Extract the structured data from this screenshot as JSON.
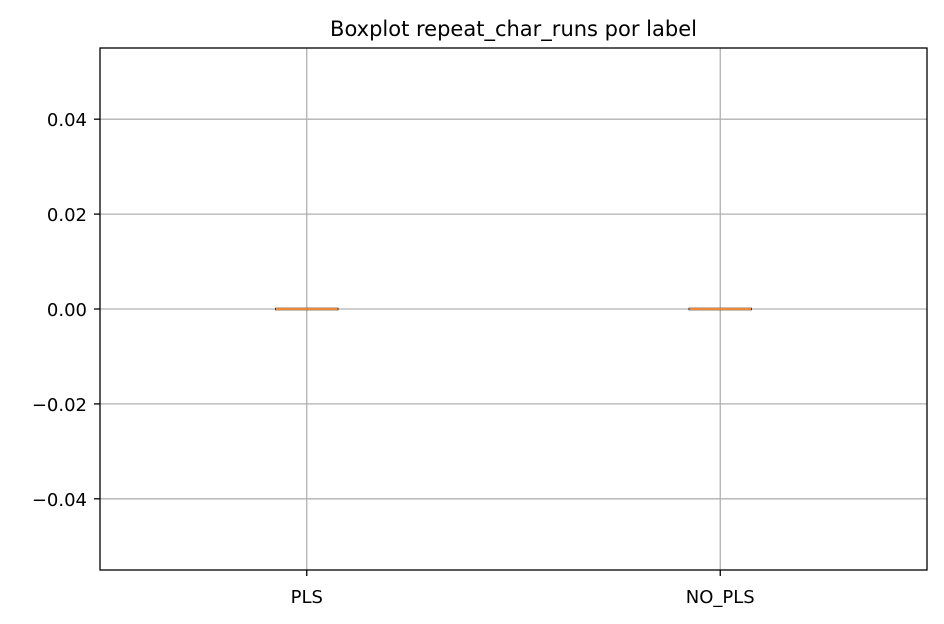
{
  "chart_data": {
    "type": "boxplot",
    "title": "Boxplot repeat_char_runs por label",
    "xlabel": "",
    "ylabel": "",
    "categories": [
      "PLS",
      "NO_PLS"
    ],
    "boxes": [
      {
        "category": "PLS",
        "min": 0,
        "q1": 0,
        "median": 0,
        "q3": 0,
        "max": 0
      },
      {
        "category": "NO_PLS",
        "min": 0,
        "q1": 0,
        "median": 0,
        "q3": 0,
        "max": 0
      }
    ],
    "ylim": [
      -0.055,
      0.055
    ],
    "yticks": [
      0.04,
      0.02,
      0.0,
      -0.02,
      -0.04
    ],
    "ytick_labels": [
      "0.04",
      "0.02",
      "0.00",
      "−0.02",
      "−0.04"
    ],
    "grid": true,
    "colors": {
      "median": "#e8883a",
      "box": "#000000",
      "grid": "#b0b0b0"
    }
  }
}
